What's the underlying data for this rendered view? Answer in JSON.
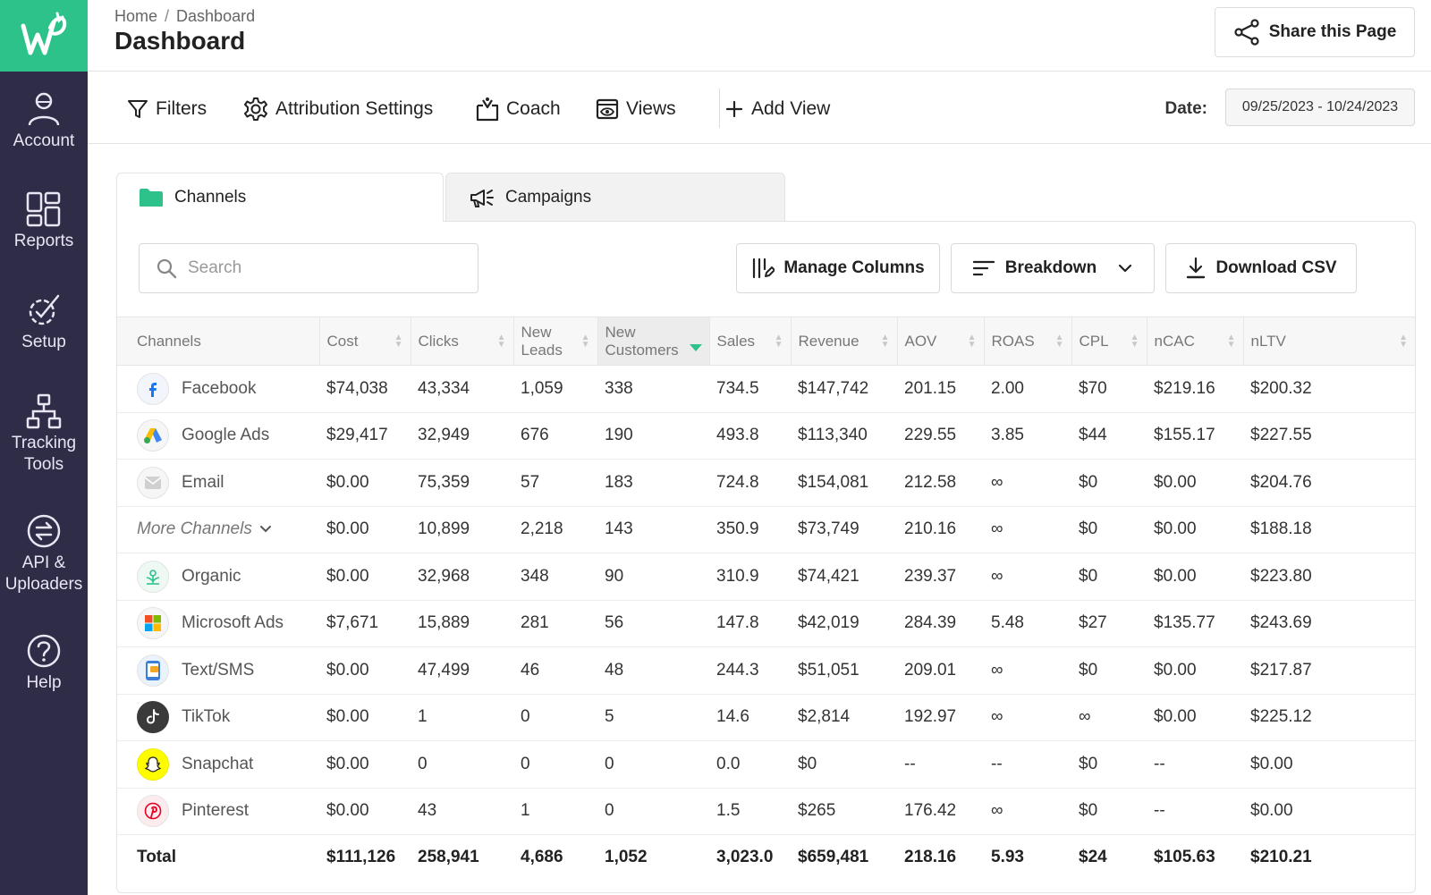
{
  "sidebar": {
    "items": [
      {
        "label": "Account",
        "icon": "user-icon"
      },
      {
        "label": "Reports",
        "icon": "grid-icon"
      },
      {
        "label": "Setup",
        "icon": "setup-icon"
      },
      {
        "label": "Tracking Tools",
        "icon": "hierarchy-icon"
      },
      {
        "label": "API & Uploaders",
        "icon": "exchange-icon"
      },
      {
        "label": "Help",
        "icon": "help-icon"
      }
    ],
    "colors": {
      "background": "#2f2c48",
      "logo_bg": "#2ec28b"
    }
  },
  "header": {
    "breadcrumb": [
      "Home",
      "Dashboard"
    ],
    "breadcrumb_sep": "/",
    "title": "Dashboard",
    "share_label": "Share this Page"
  },
  "toolbar": {
    "filters": "Filters",
    "attribution": "Attribution Settings",
    "coach": "Coach",
    "views": "Views",
    "add_view": "Add View",
    "date_label": "Date:",
    "date_value": "09/25/2023 - 10/24/2023"
  },
  "tabs": {
    "channels": "Channels",
    "campaigns": "Campaigns"
  },
  "controls": {
    "search_placeholder": "Search",
    "manage_columns": "Manage Columns",
    "breakdown": "Breakdown",
    "download_csv": "Download CSV"
  },
  "table": {
    "columns": [
      "Channels",
      "Cost",
      "Clicks",
      "New Leads",
      "New Customers",
      "Sales",
      "Revenue",
      "AOV",
      "ROAS",
      "CPL",
      "nCAC",
      "nLTV"
    ],
    "sorted_column": "New Customers",
    "rows": [
      {
        "channel": "Facebook",
        "icon": "facebook-icon",
        "cells": [
          "$74,038",
          "43,334",
          "1,059",
          "338",
          "734.5",
          "$147,742",
          "201.15",
          "2.00",
          "$70",
          "$219.16",
          "$200.32"
        ]
      },
      {
        "channel": "Google Ads",
        "icon": "google-ads-icon",
        "cells": [
          "$29,417",
          "32,949",
          "676",
          "190",
          "493.8",
          "$113,340",
          "229.55",
          "3.85",
          "$44",
          "$155.17",
          "$227.55"
        ]
      },
      {
        "channel": "Email",
        "icon": "email-icon",
        "cells": [
          "$0.00",
          "75,359",
          "57",
          "183",
          "724.8",
          "$154,081",
          "212.58",
          "∞",
          "$0",
          "$0.00",
          "$204.76"
        ]
      },
      {
        "channel": "More Channels",
        "icon": "chevron-down-icon",
        "cells": [
          "$0.00",
          "10,899",
          "2,218",
          "143",
          "350.9",
          "$73,749",
          "210.16",
          "∞",
          "$0",
          "$0.00",
          "$188.18"
        ]
      },
      {
        "channel": "Organic",
        "icon": "organic-icon",
        "cells": [
          "$0.00",
          "32,968",
          "348",
          "90",
          "310.9",
          "$74,421",
          "239.37",
          "∞",
          "$0",
          "$0.00",
          "$223.80"
        ]
      },
      {
        "channel": "Microsoft Ads",
        "icon": "microsoft-icon",
        "cells": [
          "$7,671",
          "15,889",
          "281",
          "56",
          "147.8",
          "$42,019",
          "284.39",
          "5.48",
          "$27",
          "$135.77",
          "$243.69"
        ]
      },
      {
        "channel": "Text/SMS",
        "icon": "sms-icon",
        "cells": [
          "$0.00",
          "47,499",
          "46",
          "48",
          "244.3",
          "$51,051",
          "209.01",
          "∞",
          "$0",
          "$0.00",
          "$217.87"
        ]
      },
      {
        "channel": "TikTok",
        "icon": "tiktok-icon",
        "cells": [
          "$0.00",
          "1",
          "0",
          "5",
          "14.6",
          "$2,814",
          "192.97",
          "∞",
          "∞",
          "$0.00",
          "$225.12"
        ]
      },
      {
        "channel": "Snapchat",
        "icon": "snapchat-icon",
        "cells": [
          "$0.00",
          "0",
          "0",
          "0",
          "0.0",
          "$0",
          "--",
          "--",
          "$0",
          "--",
          "$0.00"
        ]
      },
      {
        "channel": "Pinterest",
        "icon": "pinterest-icon",
        "cells": [
          "$0.00",
          "43",
          "1",
          "0",
          "1.5",
          "$265",
          "176.42",
          "∞",
          "$0",
          "--",
          "$0.00"
        ]
      }
    ],
    "total": {
      "label": "Total",
      "cells": [
        "$111,126",
        "258,941",
        "4,686",
        "1,052",
        "3,023.0",
        "$659,481",
        "218.16",
        "5.93",
        "$24",
        "$105.63",
        "$210.21"
      ]
    }
  }
}
